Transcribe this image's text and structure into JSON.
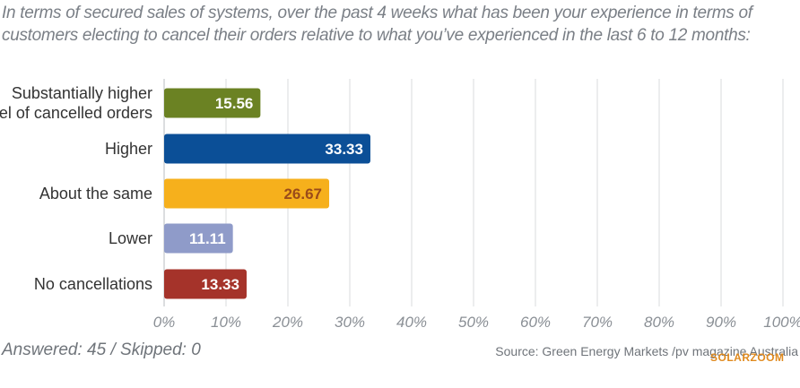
{
  "title": "In terms of secured sales of systems, over the past 4 weeks what has been your experience in terms of customers electing to cancel their orders relative to what you’ve experienced in the last 6 to 12 months:",
  "answered_text": "Answered: 45 / Skipped: 0",
  "source_text": "Source: Green Energy Markets /pv magazine Australia",
  "watermark_text": "SOLARZOOM",
  "chart_data": {
    "type": "bar",
    "orientation": "horizontal",
    "categories": [
      [
        "Substantially higher",
        "level of cancelled orders"
      ],
      [
        "Higher"
      ],
      [
        "About the same"
      ],
      [
        "Lower"
      ],
      [
        "No cancellations"
      ]
    ],
    "values": [
      15.56,
      33.33,
      26.67,
      11.11,
      13.33
    ],
    "value_labels": [
      "15.56",
      "33.33",
      "26.67",
      "11.11",
      "13.33"
    ],
    "colors": [
      "#6b8223",
      "#0b4f97",
      "#f6b01c",
      "#8f9bc9",
      "#a5332a"
    ],
    "label_colors": [
      "#ffffff",
      "#ffffff",
      "#9a4b1a",
      "#ffffff",
      "#ffffff"
    ],
    "xlim": [
      0,
      100
    ],
    "xticks": [
      "0%",
      "10%",
      "20%",
      "30%",
      "40%",
      "50%",
      "60%",
      "70%",
      "80%",
      "90%",
      "100%"
    ],
    "grid": true
  }
}
